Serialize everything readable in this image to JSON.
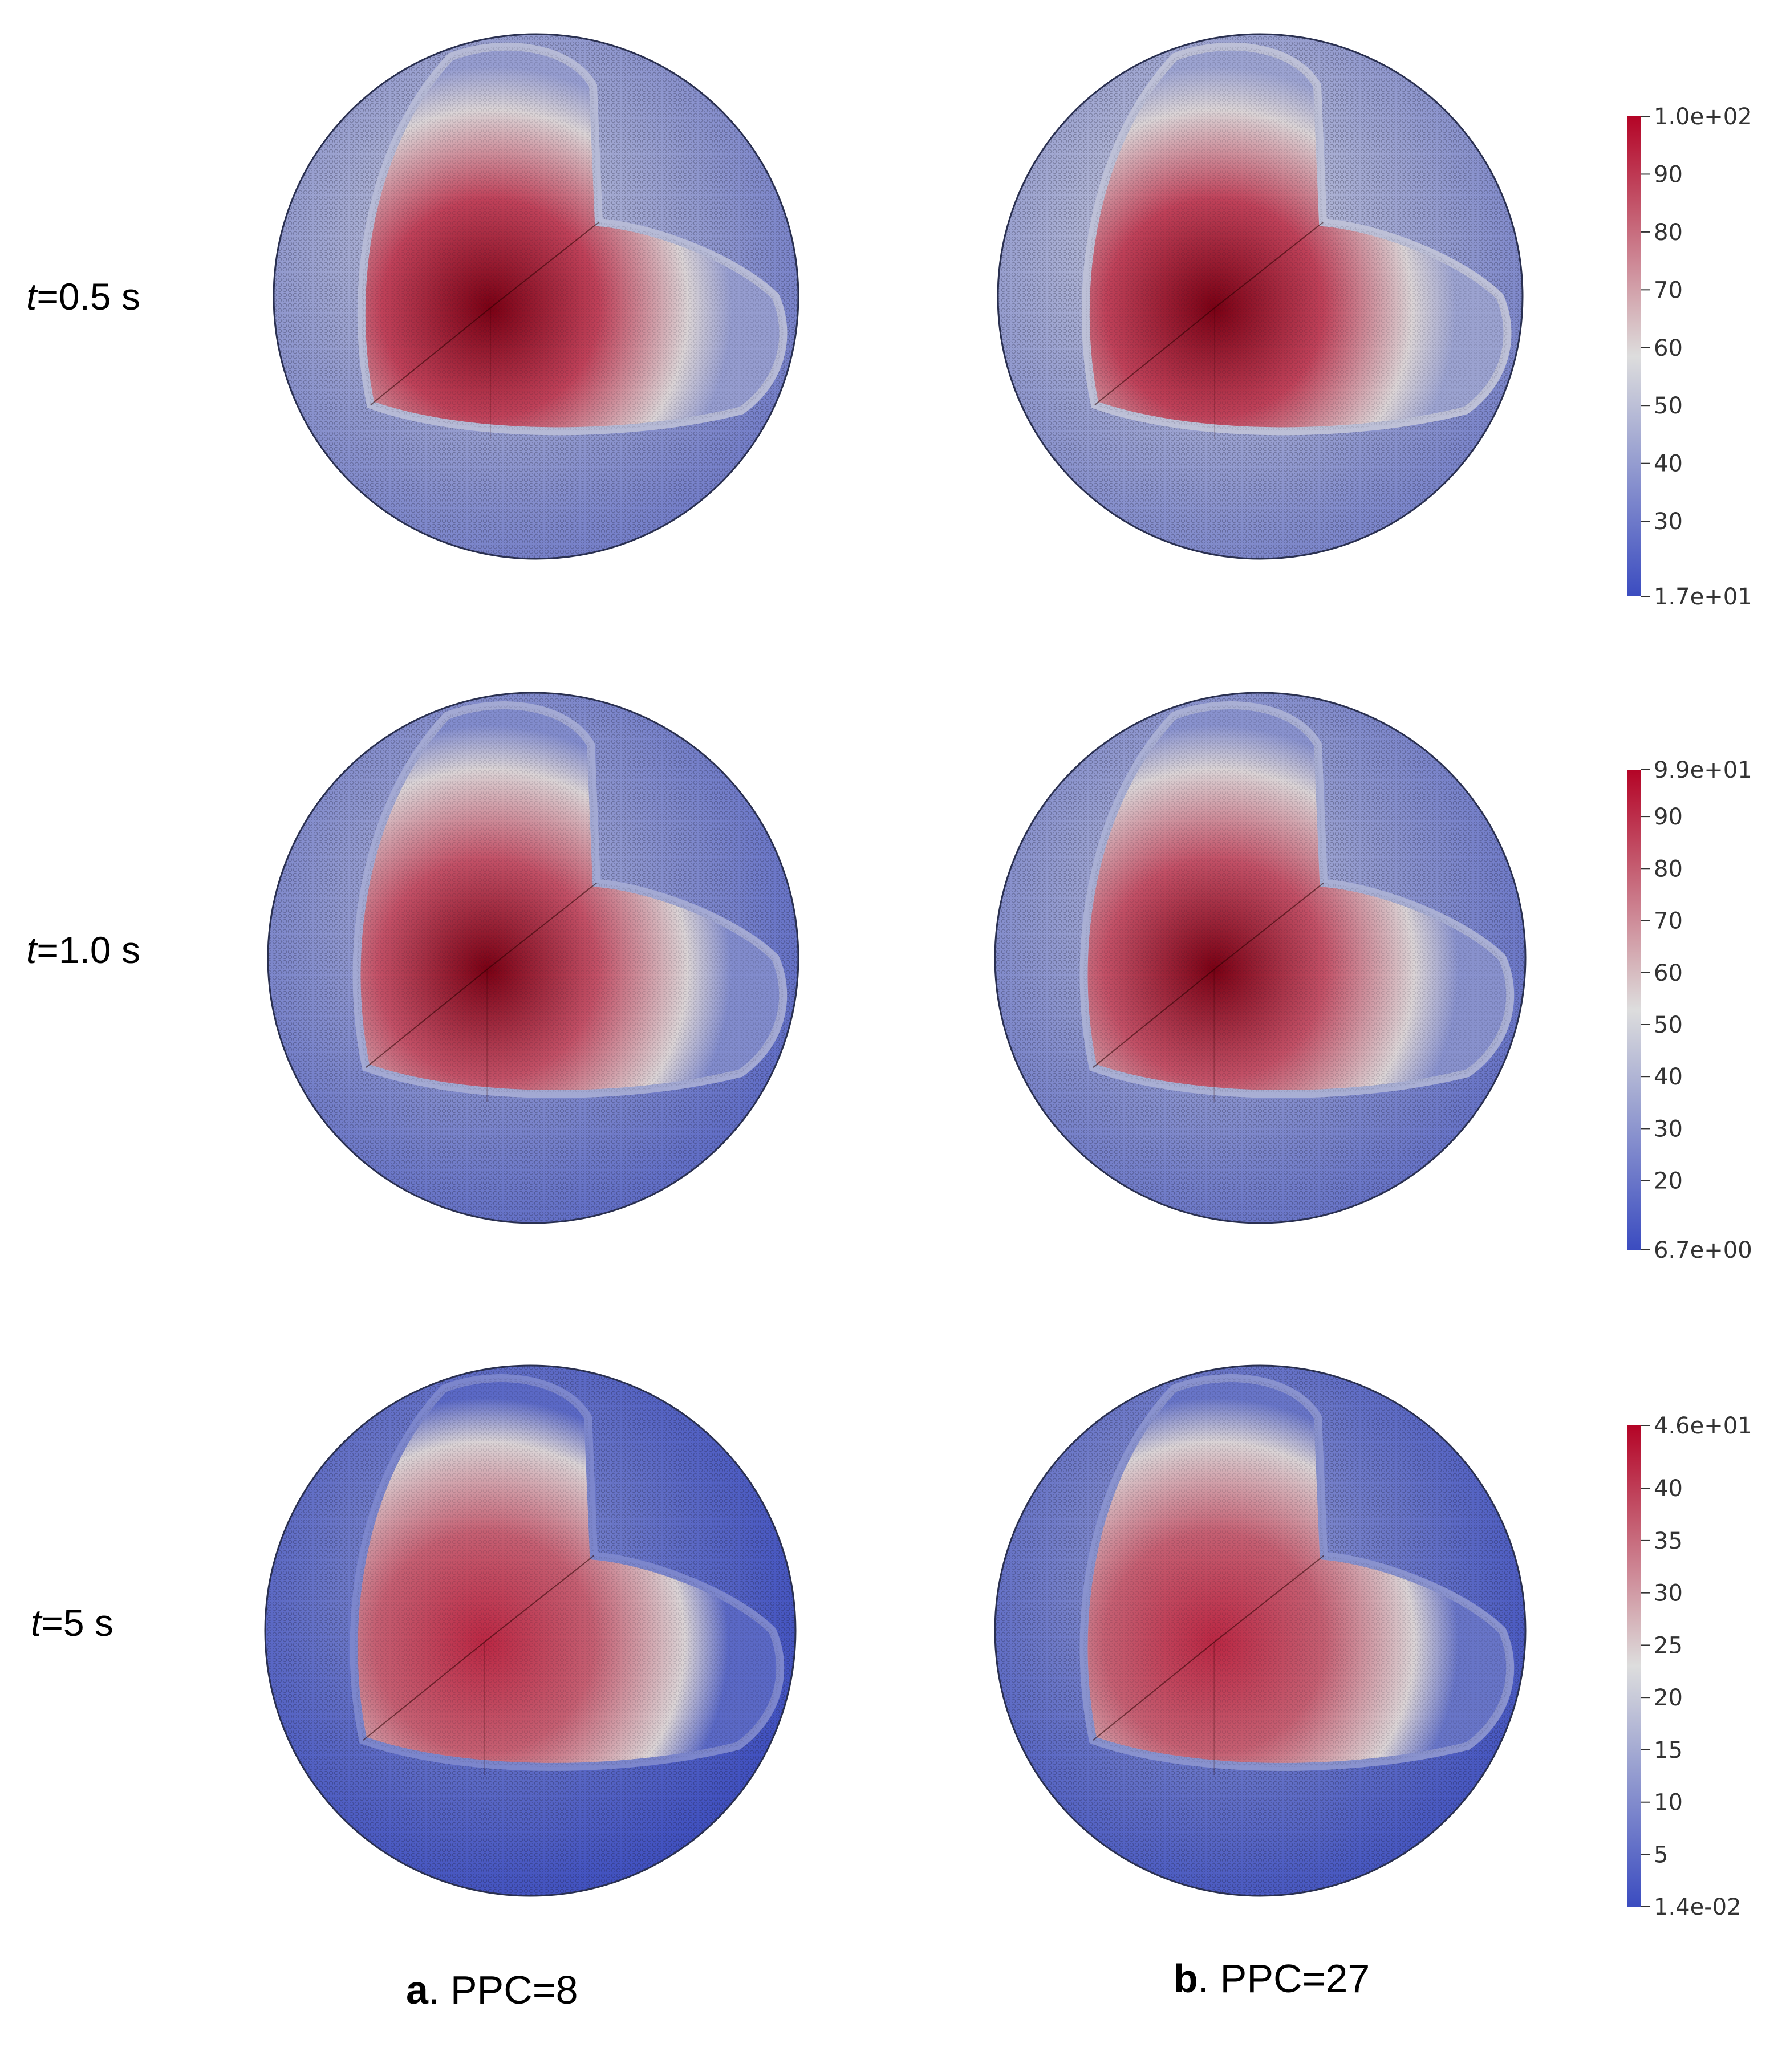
{
  "rows": [
    {
      "time_var": "t",
      "time_rest": "=0.5 s",
      "colorbar": {
        "max_label": "1.0e+02",
        "min_label": "1.7e+01",
        "min": 17,
        "max": 100,
        "ticks": [
          90,
          80,
          70,
          60,
          50,
          40,
          30
        ]
      },
      "panels": [
        {
          "core_level": 1.0,
          "shell_level": 0.28
        },
        {
          "core_level": 1.0,
          "shell_level": 0.3
        }
      ]
    },
    {
      "time_var": "t",
      "time_rest": "=1.0 s",
      "colorbar": {
        "max_label": "9.9e+01",
        "min_label": "6.7e+00",
        "min": 6.7,
        "max": 99,
        "ticks": [
          90,
          80,
          70,
          60,
          50,
          40,
          30,
          20
        ]
      },
      "panels": [
        {
          "core_level": 0.96,
          "shell_level": 0.22
        },
        {
          "core_level": 0.96,
          "shell_level": 0.24
        }
      ]
    },
    {
      "time_var": "t",
      "time_rest": "=5 s",
      "colorbar": {
        "max_label": "4.6e+01",
        "min_label": "1.4e-02",
        "min": 0.014,
        "max": 46,
        "ticks": [
          40,
          35,
          30,
          25,
          20,
          15,
          10,
          5
        ]
      },
      "panels": [
        {
          "core_level": 0.92,
          "shell_level": 0.1
        },
        {
          "core_level": 0.92,
          "shell_level": 0.14
        }
      ]
    }
  ],
  "columns": [
    {
      "letter": "a",
      "rest": ". PPC=8"
    },
    {
      "letter": "b",
      "rest": ". PPC=27"
    }
  ],
  "colors": {
    "cool": "#3b4cc0",
    "mid": "#dddddd",
    "warm": "#b40426",
    "dark_core": "#7a0013"
  }
}
